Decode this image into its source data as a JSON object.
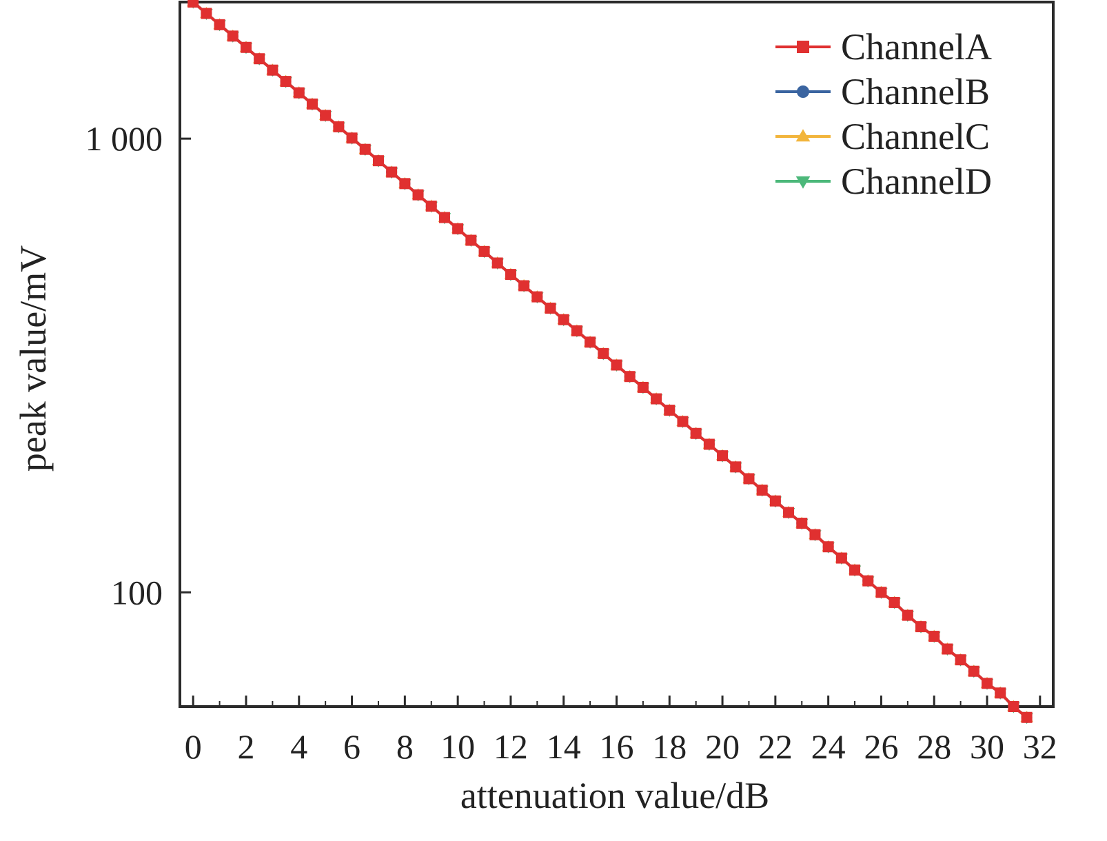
{
  "chart_data": {
    "type": "line",
    "title": "",
    "xlabel": "attenuation value/dB",
    "ylabel": "peak value/mV",
    "xlim": [
      -0.5,
      32.5
    ],
    "ylim": [
      56,
      2000
    ],
    "yscale": "log",
    "xticks": [
      0,
      2,
      4,
      6,
      8,
      10,
      12,
      14,
      16,
      18,
      20,
      22,
      24,
      26,
      28,
      30,
      32
    ],
    "xtick_labels": [
      "0",
      "2",
      "4",
      "6",
      "8",
      "10",
      "12",
      "14",
      "16",
      "18",
      "20",
      "22",
      "24",
      "26",
      "28",
      "30",
      "32"
    ],
    "yticks": [
      100,
      1000
    ],
    "ytick_labels": [
      "100",
      "1 000"
    ],
    "grid": false,
    "legend_position": "top-right",
    "x": [
      0,
      0.5,
      1,
      1.5,
      2,
      2.5,
      3,
      3.5,
      4,
      4.5,
      5,
      5.5,
      6,
      6.5,
      7,
      7.5,
      8,
      8.5,
      9,
      9.5,
      10,
      10.5,
      11,
      11.5,
      12,
      12.5,
      13,
      13.5,
      14,
      14.5,
      15,
      15.5,
      16,
      16.5,
      17,
      17.5,
      18,
      18.5,
      19,
      19.5,
      20,
      20.5,
      21,
      21.5,
      22,
      22.5,
      23,
      23.5,
      24,
      24.5,
      25,
      25.5,
      26,
      26.5,
      27,
      27.5,
      28,
      28.5,
      29,
      29.5,
      30,
      30.5,
      31,
      31.5
    ],
    "series": [
      {
        "name": "ChannelA",
        "color": "#e03030",
        "marker": "square",
        "values": [
          2000,
          1888,
          1783,
          1683,
          1589,
          1500,
          1416,
          1337,
          1262,
          1192,
          1125,
          1062,
          1003,
          947,
          894,
          844,
          796,
          752,
          710,
          670,
          633,
          597,
          564,
          532,
          502,
          474,
          448,
          423,
          399,
          377,
          356,
          336,
          317,
          299,
          283,
          267,
          252,
          238,
          224,
          212,
          200,
          189,
          178,
          168,
          159,
          150,
          142,
          134,
          126,
          119,
          112,
          106,
          100,
          95,
          89,
          84,
          80,
          75,
          71,
          67,
          63,
          60,
          56,
          53
        ]
      },
      {
        "name": "ChannelB",
        "color": "#3a64a0",
        "marker": "circle",
        "values": [
          2000,
          1888,
          1783,
          1683,
          1589,
          1500,
          1416,
          1337,
          1262,
          1192,
          1125,
          1062,
          1003,
          947,
          894,
          844,
          796,
          752,
          710,
          670,
          633,
          597,
          564,
          532,
          502,
          474,
          448,
          423,
          399,
          377,
          356,
          336,
          317,
          299,
          283,
          267,
          252,
          238,
          224,
          212,
          200,
          189,
          178,
          168,
          159,
          150,
          142,
          134,
          126,
          119,
          112,
          106,
          100,
          95,
          89,
          84,
          80,
          75,
          71,
          67,
          63,
          60,
          56,
          53
        ]
      },
      {
        "name": "ChannelC",
        "color": "#f2b53c",
        "marker": "triangle-up",
        "values": [
          2000,
          1888,
          1783,
          1683,
          1589,
          1500,
          1416,
          1337,
          1262,
          1192,
          1125,
          1062,
          1003,
          947,
          894,
          844,
          796,
          752,
          710,
          670,
          633,
          597,
          564,
          532,
          502,
          474,
          448,
          423,
          399,
          377,
          356,
          336,
          317,
          299,
          283,
          267,
          252,
          238,
          224,
          212,
          200,
          189,
          178,
          168,
          159,
          150,
          142,
          134,
          126,
          119,
          112,
          106,
          100,
          95,
          89,
          84,
          80,
          75,
          71,
          67,
          63,
          60,
          56,
          53
        ]
      },
      {
        "name": "ChannelD",
        "color": "#4cb87a",
        "marker": "triangle-down",
        "values": [
          2000,
          1888,
          1783,
          1683,
          1589,
          1500,
          1416,
          1337,
          1262,
          1192,
          1125,
          1062,
          1003,
          947,
          894,
          844,
          796,
          752,
          710,
          670,
          633,
          597,
          564,
          532,
          502,
          474,
          448,
          423,
          399,
          377,
          356,
          336,
          317,
          299,
          283,
          267,
          252,
          238,
          224,
          212,
          200,
          189,
          178,
          168,
          159,
          150,
          142,
          134,
          126,
          119,
          112,
          106,
          100,
          95,
          89,
          84,
          80,
          75,
          71,
          67,
          63,
          60,
          56,
          53
        ]
      }
    ]
  }
}
